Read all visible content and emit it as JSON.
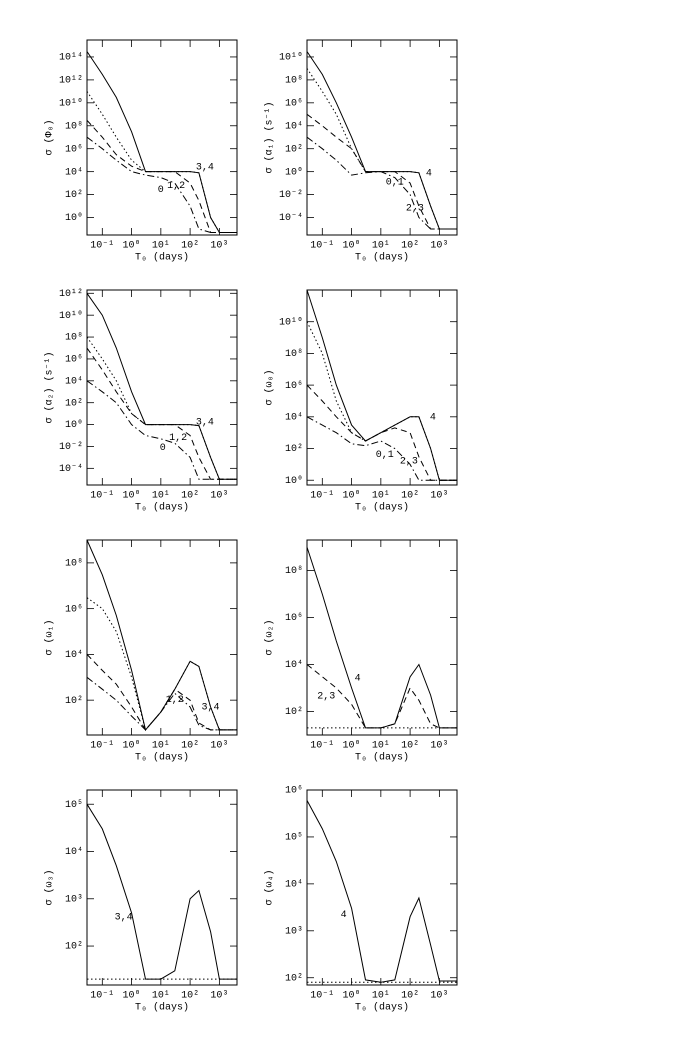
{
  "chart_data": [
    {
      "type": "line",
      "ylabel": "σ (Φ₀)",
      "xlabel": "T₀  (days)",
      "log_x": true,
      "log_y": true,
      "x": [
        0.03,
        0.1,
        0.3,
        1,
        3,
        10,
        30,
        100,
        200,
        500,
        1000,
        4000
      ],
      "xlim": [
        0.03,
        4000
      ],
      "xticks": [
        {
          "value": 0.1,
          "label": "10⁻¹"
        },
        {
          "value": 1,
          "label": "10⁰"
        },
        {
          "value": 10,
          "label": "10¹"
        },
        {
          "value": 100,
          "label": "10²"
        },
        {
          "value": 1000,
          "label": "10³"
        }
      ],
      "ylim": [
        0.03,
        3000000000000000.0
      ],
      "yticks": [
        {
          "value": 1,
          "label": "10⁰"
        },
        {
          "value": 100,
          "label": "10²"
        },
        {
          "value": 10000,
          "label": "10⁴"
        },
        {
          "value": 1000000,
          "label": "10⁶"
        },
        {
          "value": 100000000,
          "label": "10⁸"
        },
        {
          "value": 10000000000.0,
          "label": "10¹⁰"
        },
        {
          "value": 1000000000000.0,
          "label": "10¹²"
        },
        {
          "value": 100000000000000.0,
          "label": "10¹⁴"
        }
      ],
      "series": [
        {
          "name": "3,4",
          "color": "#000",
          "dash": "solid",
          "values": [
            300000000000000.0,
            3000000000000.0,
            30000000000.0,
            30000000.0,
            10000,
            10000,
            10000,
            10000,
            8000,
            1,
            0.05,
            0.05
          ]
        },
        {
          "color": "#000",
          "dash": "dotted",
          "values": [
            100000000000.0,
            1000000000.0,
            10000000.0,
            100000,
            10000,
            10000,
            10000,
            10000,
            8000,
            1,
            0.05,
            0.05
          ]
        },
        {
          "name": "1,2",
          "color": "#000",
          "dash": "dashed",
          "values": [
            300000000.0,
            10000000.0,
            300000,
            30000,
            10000,
            10000,
            10000,
            1000,
            30,
            0.05,
            0.05,
            0.05
          ]
        },
        {
          "name": "0",
          "color": "#000",
          "dash": "dashdot",
          "values": [
            10000000.0,
            1000000,
            100000,
            10000,
            5000,
            3000,
            1000,
            10,
            0.1,
            0.05,
            0.05,
            0.05
          ]
        }
      ]
    },
    {
      "type": "line",
      "ylabel": "σ (α₁)  (s⁻¹)",
      "xlabel": "T₀  (days)",
      "log_x": true,
      "log_y": true,
      "x": [
        0.03,
        0.1,
        0.3,
        1,
        3,
        10,
        30,
        100,
        200,
        500,
        1000,
        4000
      ],
      "xlim": [
        0.03,
        4000
      ],
      "xticks": [
        {
          "value": 0.1,
          "label": "10⁻¹"
        },
        {
          "value": 1,
          "label": "10⁰"
        },
        {
          "value": 10,
          "label": "10¹"
        },
        {
          "value": 100,
          "label": "10²"
        },
        {
          "value": 1000,
          "label": "10³"
        }
      ],
      "ylim": [
        3e-06,
        300000000000.0
      ],
      "yticks": [
        {
          "value": 0.0001,
          "label": "10⁻⁴"
        },
        {
          "value": 0.01,
          "label": "10⁻²"
        },
        {
          "value": 1,
          "label": "10⁰"
        },
        {
          "value": 100,
          "label": "10²"
        },
        {
          "value": 10000,
          "label": "10⁴"
        },
        {
          "value": 1000000,
          "label": "10⁶"
        },
        {
          "value": 100000000,
          "label": "10⁸"
        },
        {
          "value": 10000000000.0,
          "label": "10¹⁰"
        }
      ],
      "series": [
        {
          "name": "4",
          "color": "#000",
          "dash": "solid",
          "values": [
            30000000000.0,
            300000000.0,
            1000000,
            1000,
            1,
            1,
            1,
            1,
            0.8,
            0.001,
            1e-05,
            1e-05
          ]
        },
        {
          "color": "#000",
          "dash": "dotted",
          "values": [
            1000000000.0,
            10000000.0,
            100000,
            100,
            1,
            1,
            1,
            1,
            0.8,
            0.001,
            1e-05,
            1e-05
          ]
        },
        {
          "name": "2,3",
          "color": "#000",
          "dash": "dashed",
          "values": [
            100000,
            10000,
            1000,
            100,
            1,
            1,
            1,
            0.1,
            0.001,
            1e-05,
            1e-05,
            1e-05
          ]
        },
        {
          "name": "0,1",
          "color": "#000",
          "dash": "dashdot",
          "values": [
            1000,
            100,
            10,
            0.5,
            0.8,
            1,
            0.3,
            0.01,
            0.0001,
            1e-05,
            1e-05,
            1e-05
          ]
        }
      ]
    },
    {
      "type": "line",
      "ylabel": "σ (α₂)  (s⁻¹)",
      "xlabel": "T₀  (days)",
      "log_x": true,
      "log_y": true,
      "x": [
        0.03,
        0.1,
        0.3,
        1,
        3,
        10,
        30,
        100,
        200,
        500,
        1000,
        4000
      ],
      "xlim": [
        0.03,
        4000
      ],
      "xticks": [
        {
          "value": 0.1,
          "label": "10⁻¹"
        },
        {
          "value": 1,
          "label": "10⁰"
        },
        {
          "value": 10,
          "label": "10¹"
        },
        {
          "value": 100,
          "label": "10²"
        },
        {
          "value": 1000,
          "label": "10³"
        }
      ],
      "ylim": [
        3e-06,
        2000000000000.0
      ],
      "yticks": [
        {
          "value": 0.0001,
          "label": "10⁻⁴"
        },
        {
          "value": 0.01,
          "label": "10⁻²"
        },
        {
          "value": 1,
          "label": "10⁰"
        },
        {
          "value": 100,
          "label": "10²"
        },
        {
          "value": 10000,
          "label": "10⁴"
        },
        {
          "value": 1000000,
          "label": "10⁶"
        },
        {
          "value": 100000000,
          "label": "10⁸"
        },
        {
          "value": 10000000000.0,
          "label": "10¹⁰"
        },
        {
          "value": 1000000000000.0,
          "label": "10¹²"
        }
      ],
      "series": [
        {
          "name": "3,4",
          "color": "#000",
          "dash": "solid",
          "values": [
            1000000000000.0,
            10000000000.0,
            10000000.0,
            1000,
            1,
            1,
            1,
            1,
            0.8,
            0.001,
            1e-05,
            1e-05
          ]
        },
        {
          "color": "#000",
          "dash": "dotted",
          "values": [
            100000000.0,
            1000000,
            10000,
            10,
            1,
            1,
            1,
            1,
            0.8,
            0.001,
            1e-05,
            1e-05
          ]
        },
        {
          "name": "1,2",
          "color": "#000",
          "dash": "dashed",
          "values": [
            10000000.0,
            100000,
            1000,
            10,
            1,
            1,
            1,
            0.1,
            0.001,
            1e-05,
            1e-05,
            1e-05
          ]
        },
        {
          "name": "0",
          "color": "#000",
          "dash": "dashdot",
          "values": [
            10000,
            1000,
            100,
            1,
            0.1,
            0.05,
            0.02,
            0.001,
            1e-05,
            1e-05,
            1e-05,
            1e-05
          ]
        }
      ]
    },
    {
      "type": "line",
      "ylabel": "σ (ω₀)",
      "xlabel": "T₀  (days)",
      "log_x": true,
      "log_y": true,
      "x": [
        0.03,
        0.1,
        0.3,
        1,
        3,
        10,
        30,
        100,
        200,
        500,
        1000,
        4000
      ],
      "xlim": [
        0.03,
        4000
      ],
      "xticks": [
        {
          "value": 0.1,
          "label": "10⁻¹"
        },
        {
          "value": 1,
          "label": "10⁰"
        },
        {
          "value": 10,
          "label": "10¹"
        },
        {
          "value": 100,
          "label": "10²"
        },
        {
          "value": 1000,
          "label": "10³"
        }
      ],
      "ylim": [
        0.5,
        1000000000000.0
      ],
      "yticks": [
        {
          "value": 1,
          "label": "10⁰"
        },
        {
          "value": 100,
          "label": "10²"
        },
        {
          "value": 10000,
          "label": "10⁴"
        },
        {
          "value": 1000000,
          "label": "10⁶"
        },
        {
          "value": 100000000,
          "label": "10⁸"
        },
        {
          "value": 10000000000.0,
          "label": "10¹⁰"
        }
      ],
      "series": [
        {
          "name": "4",
          "color": "#000",
          "dash": "solid",
          "values": [
            1000000000000.0,
            1000000000.0,
            1000000,
            3000,
            300,
            1000,
            3000,
            10000,
            10000,
            100,
            1,
            1
          ]
        },
        {
          "color": "#000",
          "dash": "dotted",
          "values": [
            10000000000.0,
            100000000,
            100000,
            1000,
            300,
            1000,
            3000,
            10000,
            10000,
            100,
            1,
            1
          ]
        },
        {
          "name": "2,3",
          "color": "#000",
          "dash": "dashed",
          "values": [
            1000000,
            100000,
            10000,
            1000,
            300,
            1000,
            2000,
            1000,
            30,
            1,
            1,
            1
          ]
        },
        {
          "name": "0,1",
          "color": "#000",
          "dash": "dashdot",
          "values": [
            10000,
            3000,
            1000,
            200,
            150,
            300,
            100,
            10,
            1,
            1,
            1,
            1
          ]
        }
      ]
    },
    {
      "type": "line",
      "ylabel": "σ (ω₁)",
      "xlabel": "T₀  (days)",
      "log_x": true,
      "log_y": true,
      "x": [
        0.03,
        0.1,
        0.3,
        1,
        3,
        10,
        30,
        100,
        200,
        500,
        1000,
        4000
      ],
      "xlim": [
        0.03,
        4000
      ],
      "xticks": [
        {
          "value": 0.1,
          "label": "10⁻¹"
        },
        {
          "value": 1,
          "label": "10⁰"
        },
        {
          "value": 10,
          "label": "10¹"
        },
        {
          "value": 100,
          "label": "10²"
        },
        {
          "value": 1000,
          "label": "10³"
        }
      ],
      "ylim": [
        3,
        1000000000.0
      ],
      "yticks": [
        {
          "value": 100,
          "label": "10²"
        },
        {
          "value": 10000,
          "label": "10⁴"
        },
        {
          "value": 1000000,
          "label": "10⁶"
        },
        {
          "value": 100000000,
          "label": "10⁸"
        }
      ],
      "series": [
        {
          "name": "3,4",
          "color": "#000",
          "dash": "solid",
          "values": [
            1000000000.0,
            30000000.0,
            500000,
            2000,
            5,
            30,
            300,
            5000,
            3000,
            50,
            5,
            5
          ]
        },
        {
          "color": "#000",
          "dash": "dotted",
          "values": [
            3000000,
            1000000,
            100000,
            1000,
            5,
            30,
            300,
            5000,
            3000,
            50,
            5,
            5
          ]
        },
        {
          "name": "1,2",
          "color": "#000",
          "dash": "dashed",
          "values": [
            10000,
            2000,
            500,
            50,
            5,
            30,
            300,
            100,
            10,
            5,
            5,
            5
          ]
        },
        {
          "color": "#000",
          "dash": "dashdot",
          "values": [
            1000,
            300,
            100,
            20,
            5,
            30,
            200,
            50,
            8,
            5,
            5,
            5
          ]
        }
      ]
    },
    {
      "type": "line",
      "ylabel": "σ (ω₂)",
      "xlabel": "T₀  (days)",
      "log_x": true,
      "log_y": true,
      "x": [
        0.03,
        0.1,
        0.3,
        1,
        3,
        10,
        30,
        100,
        200,
        500,
        1000,
        4000
      ],
      "xlim": [
        0.03,
        4000
      ],
      "xticks": [
        {
          "value": 0.1,
          "label": "10⁻¹"
        },
        {
          "value": 1,
          "label": "10⁰"
        },
        {
          "value": 10,
          "label": "10¹"
        },
        {
          "value": 100,
          "label": "10²"
        },
        {
          "value": 1000,
          "label": "10³"
        }
      ],
      "ylim": [
        10,
        2000000000.0
      ],
      "yticks": [
        {
          "value": 100,
          "label": "10²"
        },
        {
          "value": 10000,
          "label": "10⁴"
        },
        {
          "value": 1000000,
          "label": "10⁶"
        },
        {
          "value": 100000000,
          "label": "10⁸"
        }
      ],
      "series": [
        {
          "name": "4",
          "color": "#000",
          "dash": "solid",
          "values": [
            1000000000.0,
            10000000.0,
            100000,
            1000,
            20,
            20,
            30,
            3000,
            10000,
            500,
            20,
            20
          ]
        },
        {
          "name": "2,3",
          "color": "#000",
          "dash": "dashed",
          "values": [
            10000,
            3000,
            1000,
            200,
            20,
            20,
            30,
            1000,
            300,
            30,
            20,
            20
          ]
        },
        {
          "color": "#000",
          "dash": "dotted",
          "values": [
            20,
            20,
            20,
            20,
            20,
            20,
            20,
            20,
            20,
            20,
            20,
            20
          ]
        }
      ]
    },
    {
      "type": "line",
      "ylabel": "σ (ω₃)",
      "xlabel": "T₀  (days)",
      "log_x": true,
      "log_y": true,
      "x": [
        0.03,
        0.1,
        0.3,
        1,
        3,
        10,
        30,
        100,
        200,
        500,
        1000,
        4000
      ],
      "xlim": [
        0.03,
        4000
      ],
      "xticks": [
        {
          "value": 0.1,
          "label": "10⁻¹"
        },
        {
          "value": 1,
          "label": "10⁰"
        },
        {
          "value": 10,
          "label": "10¹"
        },
        {
          "value": 100,
          "label": "10²"
        },
        {
          "value": 1000,
          "label": "10³"
        }
      ],
      "ylim": [
        15,
        200000
      ],
      "yticks": [
        {
          "value": 100,
          "label": "10²"
        },
        {
          "value": 1000,
          "label": "10³"
        },
        {
          "value": 10000,
          "label": "10⁴"
        },
        {
          "value": 100000,
          "label": "10⁵"
        }
      ],
      "series": [
        {
          "name": "3,4",
          "color": "#000",
          "dash": "solid",
          "values": [
            100000,
            30000,
            5000,
            500,
            20,
            20,
            30,
            1000,
            1500,
            200,
            20,
            20
          ]
        },
        {
          "color": "#000",
          "dash": "dotted",
          "values": [
            20,
            20,
            20,
            20,
            20,
            20,
            20,
            20,
            20,
            20,
            20,
            20
          ]
        }
      ]
    },
    {
      "type": "line",
      "ylabel": "σ (ω₄)",
      "xlabel": "T₀  (days)",
      "log_x": true,
      "log_y": true,
      "x": [
        0.03,
        0.1,
        0.3,
        1,
        3,
        10,
        30,
        100,
        200,
        500,
        1000,
        4000
      ],
      "xlim": [
        0.03,
        4000
      ],
      "xticks": [
        {
          "value": 0.1,
          "label": "10⁻¹"
        },
        {
          "value": 1,
          "label": "10⁰"
        },
        {
          "value": 10,
          "label": "10¹"
        },
        {
          "value": 100,
          "label": "10²"
        },
        {
          "value": 1000,
          "label": "10³"
        }
      ],
      "ylim": [
        70,
        1000000
      ],
      "yticks": [
        {
          "value": 100,
          "label": "10²"
        },
        {
          "value": 1000,
          "label": "10³"
        },
        {
          "value": 10000,
          "label": "10⁴"
        },
        {
          "value": 100000,
          "label": "10⁵"
        },
        {
          "value": 1000000,
          "label": "10⁶"
        }
      ],
      "series": [
        {
          "name": "4",
          "color": "#000",
          "dash": "solid",
          "values": [
            600000,
            150000,
            30000,
            3000,
            90,
            80,
            90,
            2000,
            5000,
            500,
            85,
            85
          ]
        },
        {
          "color": "#000",
          "dash": "dotted",
          "values": [
            80,
            80,
            80,
            80,
            80,
            80,
            80,
            80,
            80,
            80,
            80,
            80
          ]
        }
      ]
    }
  ]
}
